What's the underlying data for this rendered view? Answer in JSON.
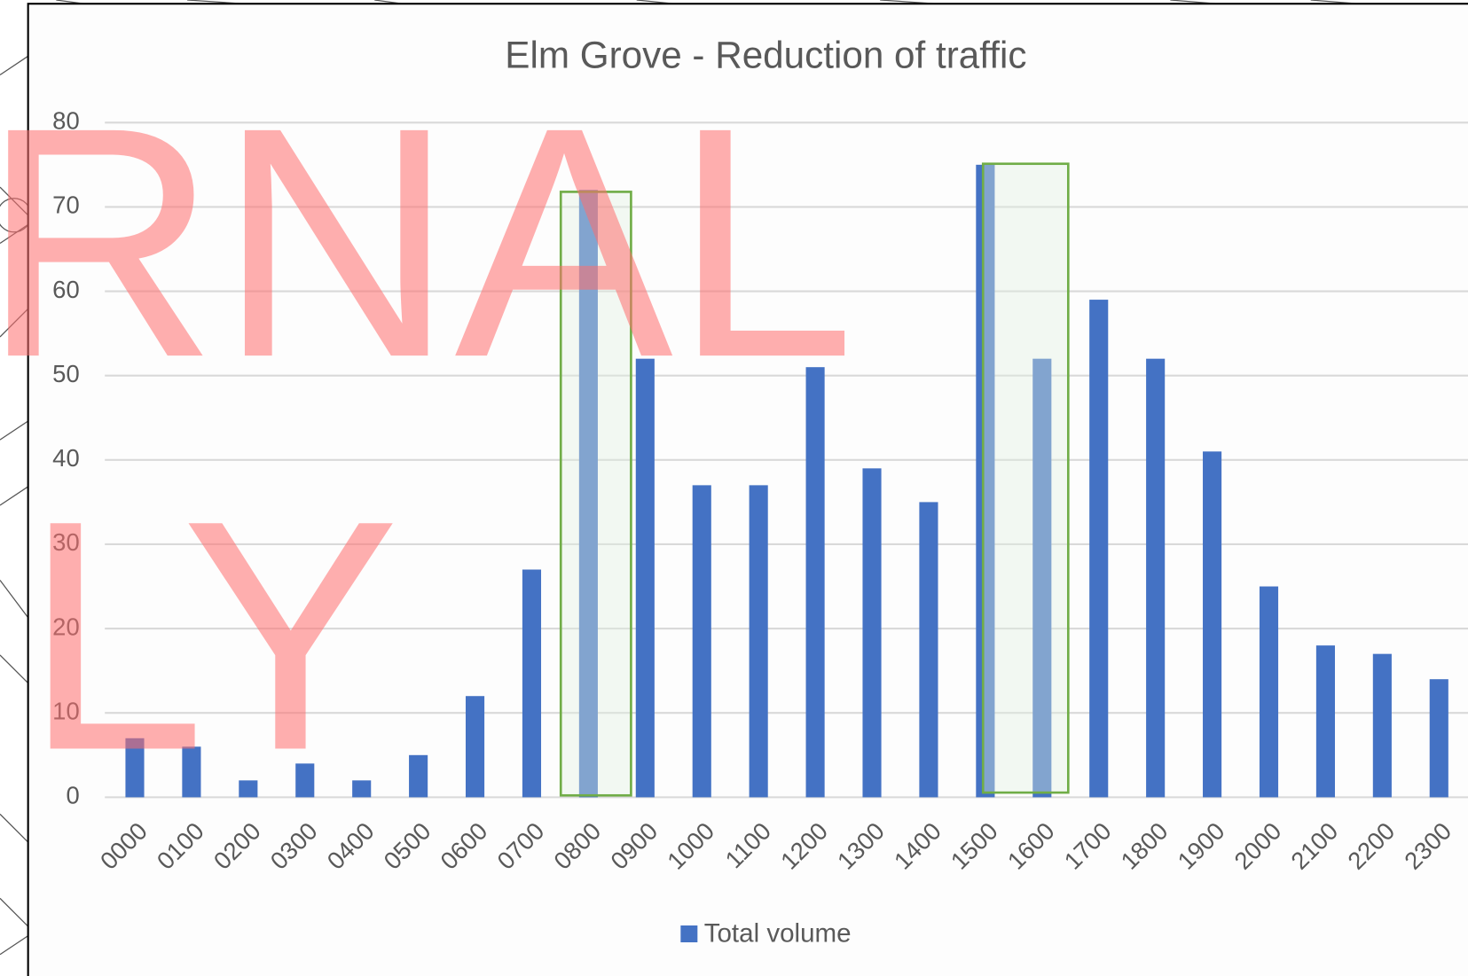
{
  "chart_data": {
    "type": "bar",
    "title": "Elm Grove - Reduction of traffic",
    "categories": [
      "0000",
      "0100",
      "0200",
      "0300",
      "0400",
      "0500",
      "0600",
      "0700",
      "0800",
      "0900",
      "1000",
      "1100",
      "1200",
      "1300",
      "1400",
      "1500",
      "1600",
      "1700",
      "1800",
      "1900",
      "2000",
      "2100",
      "2200",
      "2300"
    ],
    "series": [
      {
        "name": "Total volume",
        "color": "#4472c4",
        "values": [
          7,
          6,
          2,
          4,
          2,
          5,
          12,
          27,
          72,
          52,
          37,
          37,
          51,
          39,
          35,
          75,
          52,
          59,
          52,
          41,
          25,
          18,
          17,
          14
        ]
      }
    ],
    "ylim": [
      0,
      80
    ],
    "yticks": [
      0,
      10,
      20,
      30,
      40,
      50,
      60,
      70,
      80
    ],
    "grid": true,
    "legend": "bottom",
    "watermark": [
      "RNAL",
      "LY"
    ]
  }
}
